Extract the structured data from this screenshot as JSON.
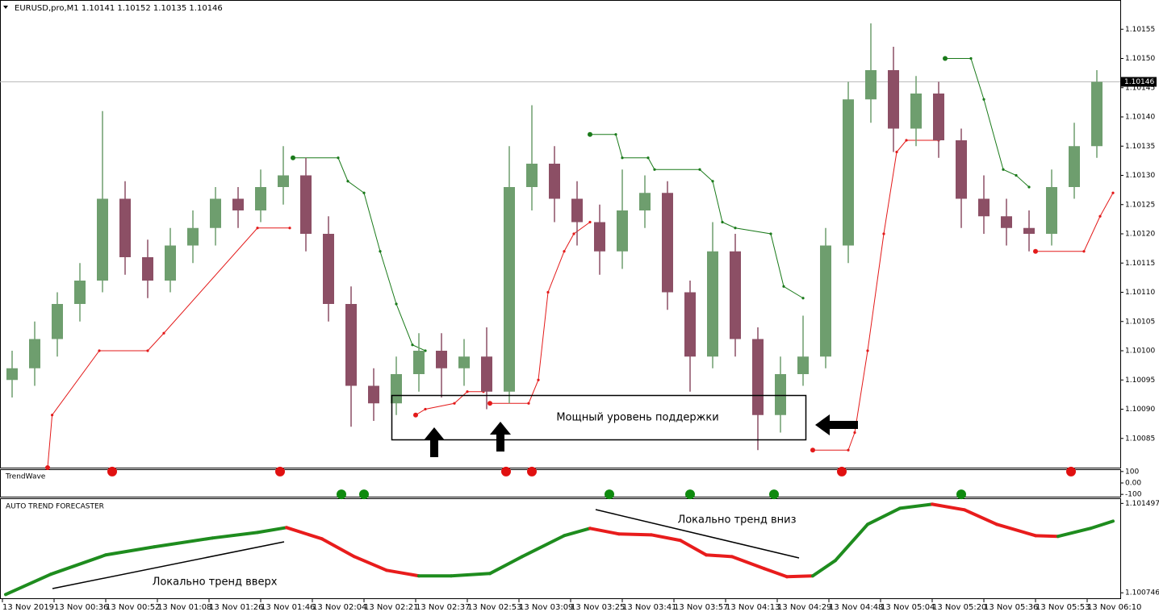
{
  "chart_data": [
    {
      "type": "candlestick",
      "title": "EURUSD,pro,M1  1.10141 1.10152 1.10135 1.10146",
      "annotation": "Мощный уровень поддержки",
      "up_color": "#6e9e6e",
      "down_color": "#8c4f65",
      "x": [
        3,
        10,
        17,
        24,
        31,
        38,
        45,
        52,
        59,
        66,
        73,
        80,
        87,
        94,
        101,
        108,
        115,
        122,
        129,
        136,
        143,
        150,
        157,
        164,
        171,
        178,
        185,
        192,
        199,
        206,
        213,
        220,
        227,
        234,
        241,
        248,
        255,
        262,
        269,
        276,
        283,
        290,
        297,
        304,
        311,
        318,
        325,
        332,
        339
      ],
      "open": [
        1.10095,
        1.10097,
        1.10102,
        1.10108,
        1.10112,
        1.10126,
        1.10116,
        1.10112,
        1.10118,
        1.10121,
        1.10126,
        1.10124,
        1.10128,
        1.1013,
        1.1012,
        1.10108,
        1.10094,
        1.10091,
        1.10096,
        1.101,
        1.10097,
        1.10099,
        1.10093,
        1.10128,
        1.10132,
        1.10126,
        1.10122,
        1.10117,
        1.10124,
        1.10127,
        1.1011,
        1.10099,
        1.10117,
        1.10102,
        1.10089,
        1.10096,
        1.10099,
        1.10118,
        1.10143,
        1.10148,
        1.10138,
        1.10144,
        1.10136,
        1.10126,
        1.10123,
        1.10121,
        1.1012,
        1.10128,
        1.10135
      ],
      "high": [
        1.101,
        1.10105,
        1.1011,
        1.10115,
        1.10141,
        1.10129,
        1.10119,
        1.10121,
        1.10124,
        1.10128,
        1.10128,
        1.10131,
        1.10135,
        1.10133,
        1.10123,
        1.10111,
        1.10097,
        1.10099,
        1.10103,
        1.10103,
        1.10102,
        1.10104,
        1.10135,
        1.10142,
        1.10135,
        1.10129,
        1.10125,
        1.10131,
        1.1013,
        1.10129,
        1.10112,
        1.10122,
        1.1012,
        1.10104,
        1.10099,
        1.10106,
        1.10121,
        1.10146,
        1.10156,
        1.10152,
        1.10147,
        1.10146,
        1.10138,
        1.1013,
        1.10126,
        1.10124,
        1.10131,
        1.10139,
        1.10148
      ],
      "low": [
        1.10092,
        1.10094,
        1.10099,
        1.10105,
        1.1011,
        1.10113,
        1.10109,
        1.1011,
        1.10115,
        1.10118,
        1.10121,
        1.10122,
        1.10125,
        1.10117,
        1.10105,
        1.10087,
        1.10088,
        1.10089,
        1.10093,
        1.10092,
        1.10094,
        1.1009,
        1.10091,
        1.10124,
        1.10122,
        1.10118,
        1.10113,
        1.10114,
        1.10121,
        1.10107,
        1.10093,
        1.10097,
        1.10099,
        1.10083,
        1.10086,
        1.10094,
        1.10097,
        1.10115,
        1.10139,
        1.10134,
        1.10135,
        1.10133,
        1.10121,
        1.1012,
        1.10118,
        1.10117,
        1.10118,
        1.10126,
        1.10133
      ],
      "close": [
        1.10097,
        1.10102,
        1.10108,
        1.10112,
        1.10126,
        1.10116,
        1.10112,
        1.10118,
        1.10121,
        1.10126,
        1.10124,
        1.10128,
        1.1013,
        1.1012,
        1.10108,
        1.10094,
        1.10091,
        1.10096,
        1.101,
        1.10097,
        1.10099,
        1.10093,
        1.10128,
        1.10132,
        1.10126,
        1.10122,
        1.10117,
        1.10124,
        1.10127,
        1.1011,
        1.10099,
        1.10117,
        1.10102,
        1.10089,
        1.10096,
        1.10099,
        1.10118,
        1.10143,
        1.10148,
        1.10138,
        1.10144,
        1.10136,
        1.10126,
        1.10123,
        1.10121,
        1.1012,
        1.10128,
        1.10135,
        1.10146
      ],
      "series": [
        {
          "color": "#e31a1a",
          "x": [
            14,
            15.4,
            30,
            45,
            50,
            79,
            89,
            null,
            128,
            131,
            140,
            144,
            149,
            null,
            151,
            163,
            166,
            169,
            174,
            177,
            182,
            null,
            251,
            262,
            264,
            268,
            273,
            277,
            280,
            290,
            null,
            320,
            335,
            340,
            344
          ],
          "values": [
            1.1008,
            1.10089,
            1.101,
            1.101,
            1.10103,
            1.10121,
            1.10121,
            null,
            1.10089,
            1.1009,
            1.10091,
            1.10093,
            1.10093,
            null,
            1.10091,
            1.10091,
            1.10095,
            1.1011,
            1.10117,
            1.1012,
            1.10122,
            null,
            1.10083,
            1.10083,
            1.10086,
            1.101,
            1.1012,
            1.10134,
            1.10136,
            1.10136,
            null,
            1.10117,
            1.10117,
            1.10123,
            1.10127
          ]
        },
        {
          "color": "#1a7a1a",
          "x": [
            90,
            104,
            107,
            112,
            117,
            122,
            127,
            131,
            null,
            182,
            190,
            192,
            200,
            202,
            216,
            220,
            223,
            227,
            238,
            242,
            248,
            null,
            292,
            300,
            304,
            310,
            314,
            318
          ],
          "values": [
            1.10133,
            1.10133,
            1.10129,
            1.10127,
            1.10117,
            1.10108,
            1.10101,
            1.101,
            null,
            1.10137,
            1.10137,
            1.10133,
            1.10133,
            1.10131,
            1.10131,
            1.10129,
            1.10122,
            1.10121,
            1.1012,
            1.10111,
            1.10109,
            null,
            1.1015,
            1.1015,
            1.10143,
            1.10131,
            1.1013,
            1.10128
          ]
        }
      ],
      "current_price": 1.10146,
      "xlim": [
        -0.75,
        346.25
      ],
      "xticks": [
        {
          "value": 0,
          "label": "13 Nov 2019"
        },
        {
          "value": 16,
          "label": "13 Nov 00:36"
        },
        {
          "value": 32,
          "label": "13 Nov 00:52"
        },
        {
          "value": 48,
          "label": "13 Nov 01:08"
        },
        {
          "value": 64,
          "label": "13 Nov 01:26"
        },
        {
          "value": 80,
          "label": "13 Nov 01:46"
        },
        {
          "value": 96,
          "label": "13 Nov 02:04"
        },
        {
          "value": 112,
          "label": "13 Nov 02:21"
        },
        {
          "value": 128,
          "label": "13 Nov 02:37"
        },
        {
          "value": 144,
          "label": "13 Nov 02:53"
        },
        {
          "value": 160,
          "label": "13 Nov 03:09"
        },
        {
          "value": 176,
          "label": "13 Nov 03:25"
        },
        {
          "value": 192,
          "label": "13 Nov 03:41"
        },
        {
          "value": 208,
          "label": "13 Nov 03:57"
        },
        {
          "value": 224,
          "label": "13 Nov 04:13"
        },
        {
          "value": 240,
          "label": "13 Nov 04:29"
        },
        {
          "value": 256,
          "label": "13 Nov 04:48"
        },
        {
          "value": 272,
          "label": "13 Nov 05:04"
        },
        {
          "value": 288,
          "label": "13 Nov 05:20"
        },
        {
          "value": 304,
          "label": "13 Nov 05:36"
        },
        {
          "value": 320,
          "label": "13 Nov 05:53"
        },
        {
          "value": 336,
          "label": "13 Nov 06:10"
        }
      ],
      "ylim": [
        1.1008,
        1.1016
      ],
      "yticks": [
        1.10085,
        {
          "value": 1.1009,
          "label": "1.10090"
        },
        1.10095,
        {
          "value": 1.101,
          "label": "1.10100"
        },
        1.10105,
        {
          "value": 1.1011,
          "label": "1.10110"
        },
        1.10115,
        {
          "value": 1.1012,
          "label": "1.10120"
        },
        1.10125,
        {
          "value": 1.1013,
          "label": "1.10130"
        },
        1.10135,
        {
          "value": 1.1014,
          "label": "1.10140"
        },
        1.10145,
        {
          "value": 1.1015,
          "label": "1.10150"
        },
        1.10155
      ]
    },
    {
      "type": "scatter",
      "title": "TrendWave",
      "series": [
        {
          "color": "#e01010",
          "x": [
            34,
            86,
            156,
            164,
            260,
            331
          ],
          "values": [
            100,
            100,
            100,
            100,
            100,
            100
          ]
        },
        {
          "color": "#0f8a0f",
          "x": [
            105,
            112,
            188,
            213,
            239,
            297
          ],
          "values": [
            -100,
            -100,
            -100,
            -100,
            -100,
            -100
          ]
        }
      ],
      "ylim": [
        -120,
        120
      ],
      "yticks": [
        100,
        {
          "value": 0,
          "label": "0.00"
        },
        -100
      ]
    },
    {
      "type": "line",
      "title": "AUTO TREND FORECASTER",
      "annotations": [
        "Локально тренд вверх",
        "Локально тренд вниз"
      ],
      "x": [
        1,
        15,
        32,
        47,
        65,
        79,
        88,
        99,
        109,
        119,
        129,
        139,
        151,
        161,
        174,
        182,
        191,
        201,
        210,
        218,
        226,
        236,
        243,
        251,
        258,
        268,
        278,
        288,
        298,
        308,
        320,
        327,
        337,
        344
      ],
      "values": [
        1.100732,
        1.100902,
        1.101064,
        1.101132,
        1.101206,
        1.101253,
        1.101294,
        1.101199,
        1.10105,
        1.100935,
        1.100888,
        1.100888,
        1.100908,
        1.10105,
        1.101226,
        1.101287,
        1.10124,
        1.101233,
        1.101186,
        1.101064,
        1.10105,
        1.100949,
        1.100881,
        1.100888,
        1.101017,
        1.101321,
        1.101456,
        1.10149,
        1.101443,
        1.101321,
        1.101226,
        1.10122,
        1.101287,
        1.101348
      ],
      "segment_colors": [
        "#1e8c1e",
        "#1e8c1e",
        "#1e8c1e",
        "#1e8c1e",
        "#1e8c1e",
        "#1e8c1e",
        "#e81c1c",
        "#e81c1c",
        "#e81c1c",
        "#e81c1c",
        "#1e8c1e",
        "#1e8c1e",
        "#1e8c1e",
        "#1e8c1e",
        "#1e8c1e",
        "#e81c1c",
        "#e81c1c",
        "#e81c1c",
        "#e81c1c",
        "#e81c1c",
        "#e81c1c",
        "#e81c1c",
        "#e81c1c",
        "#1e8c1e",
        "#1e8c1e",
        "#1e8c1e",
        "#1e8c1e",
        "#e81c1c",
        "#e81c1c",
        "#e81c1c",
        "#e81c1c",
        "#1e8c1e",
        "#1e8c1e"
      ],
      "ylim": [
        1.1007,
        1.10154
      ],
      "yticks": [
        1.101497,
        1.100746
      ]
    }
  ]
}
